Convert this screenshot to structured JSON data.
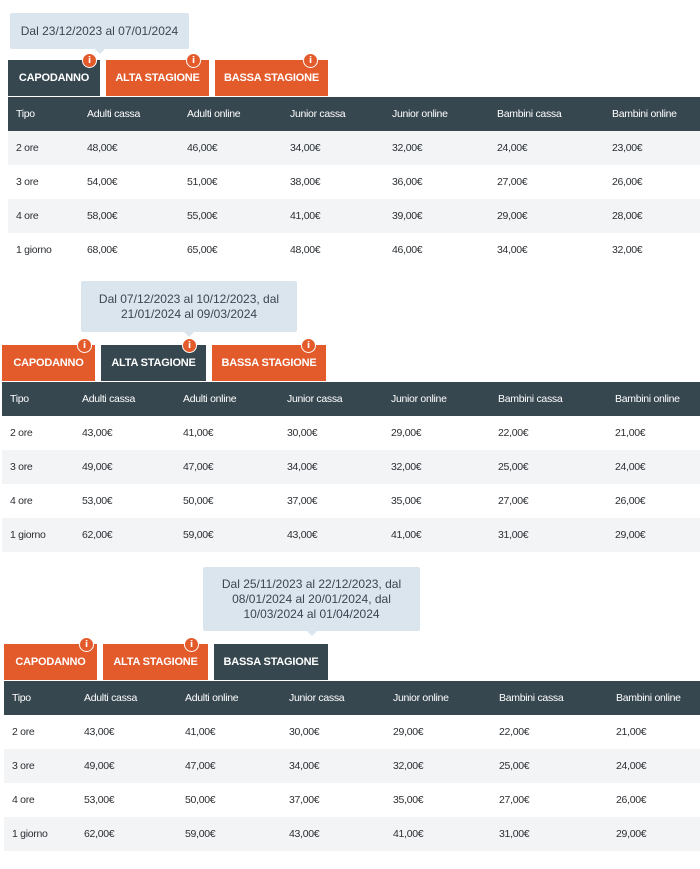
{
  "columns": [
    "Tipo",
    "Adulti cassa",
    "Adulti online",
    "Junior cassa",
    "Junior online",
    "Bambini cassa",
    "Bambini online"
  ],
  "tabs": [
    "CAPODANNO",
    "ALTA STAGIONE",
    "BASSA STAGIONE"
  ],
  "info_glyph": "i",
  "sections": [
    {
      "tooltip": "Dal 23/12/2023 al 07/01/2024",
      "active_tab": 0,
      "rows": [
        [
          "2 ore",
          "48,00€",
          "46,00€",
          "34,00€",
          "32,00€",
          "24,00€",
          "23,00€"
        ],
        [
          "3 ore",
          "54,00€",
          "51,00€",
          "38,00€",
          "36,00€",
          "27,00€",
          "26,00€"
        ],
        [
          "4 ore",
          "58,00€",
          "55,00€",
          "41,00€",
          "39,00€",
          "29,00€",
          "28,00€"
        ],
        [
          "1 giorno",
          "68,00€",
          "65,00€",
          "48,00€",
          "46,00€",
          "34,00€",
          "32,00€"
        ]
      ]
    },
    {
      "tooltip_lines": [
        "Dal 07/12/2023 al 10/12/2023, dal",
        "21/01/2024 al 09/03/2024"
      ],
      "active_tab": 1,
      "rows": [
        [
          "2 ore",
          "43,00€",
          "41,00€",
          "30,00€",
          "29,00€",
          "22,00€",
          "21,00€"
        ],
        [
          "3 ore",
          "49,00€",
          "47,00€",
          "34,00€",
          "32,00€",
          "25,00€",
          "24,00€"
        ],
        [
          "4 ore",
          "53,00€",
          "50,00€",
          "37,00€",
          "35,00€",
          "27,00€",
          "26,00€"
        ],
        [
          "1 giorno",
          "62,00€",
          "59,00€",
          "43,00€",
          "41,00€",
          "31,00€",
          "29,00€"
        ]
      ]
    },
    {
      "tooltip_lines": [
        "Dal 25/11/2023 al 22/12/2023, dal",
        "08/01/2024 al 20/01/2024, dal",
        "10/03/2024 al 01/04/2024"
      ],
      "active_tab": 2,
      "rows": [
        [
          "2 ore",
          "43,00€",
          "41,00€",
          "30,00€",
          "29,00€",
          "22,00€",
          "21,00€"
        ],
        [
          "3 ore",
          "49,00€",
          "47,00€",
          "34,00€",
          "32,00€",
          "25,00€",
          "24,00€"
        ],
        [
          "4 ore",
          "53,00€",
          "50,00€",
          "37,00€",
          "35,00€",
          "27,00€",
          "26,00€"
        ],
        [
          "1 giorno",
          "62,00€",
          "59,00€",
          "43,00€",
          "41,00€",
          "31,00€",
          "29,00€"
        ]
      ]
    }
  ],
  "colors": {
    "active_tab": "#37474f",
    "inactive_tab": "#e35a2b",
    "header": "#37474f",
    "tooltip_bg": "#dbe5ee",
    "alt_row": "#f2f4f6"
  }
}
